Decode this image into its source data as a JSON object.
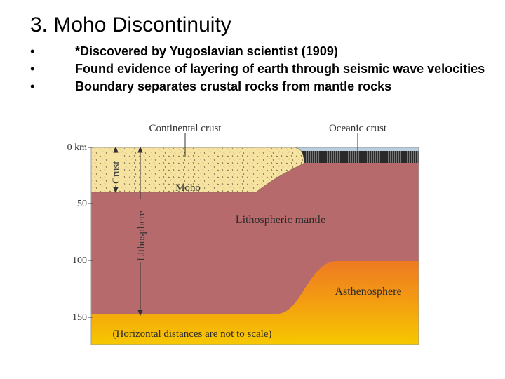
{
  "slide": {
    "title": "3. Moho Discontinuity",
    "bullets": [
      "*Discovered by Yugoslavian scientist (1909)",
      "Found evidence of layering of earth through seismic wave velocities",
      "Boundary separates crustal rocks from mantle rocks"
    ],
    "bullet_char": "•"
  },
  "diagram": {
    "labels": {
      "continental_crust": "Continental crust",
      "oceanic_crust": "Oceanic crust",
      "crust": "Crust",
      "moho": "Moho",
      "lithosphere": "Lithosphere",
      "lithospheric_mantle": "Lithospheric mantle",
      "asthenosphere": "Asthenosphere",
      "note": "(Horizontal distances are not to scale)"
    },
    "depth_ticks": [
      "0 km",
      "50",
      "100",
      "150"
    ],
    "colors": {
      "continental_crust": "#f6e3a2",
      "oceanic_crust": "#2e2e2e",
      "lithospheric_mantle": "#b76a6c",
      "asthenosphere_top": "#f28a1c",
      "asthenosphere_bottom": "#f5c200",
      "water": "#b9cfe0",
      "border": "#9a9a9a"
    }
  }
}
